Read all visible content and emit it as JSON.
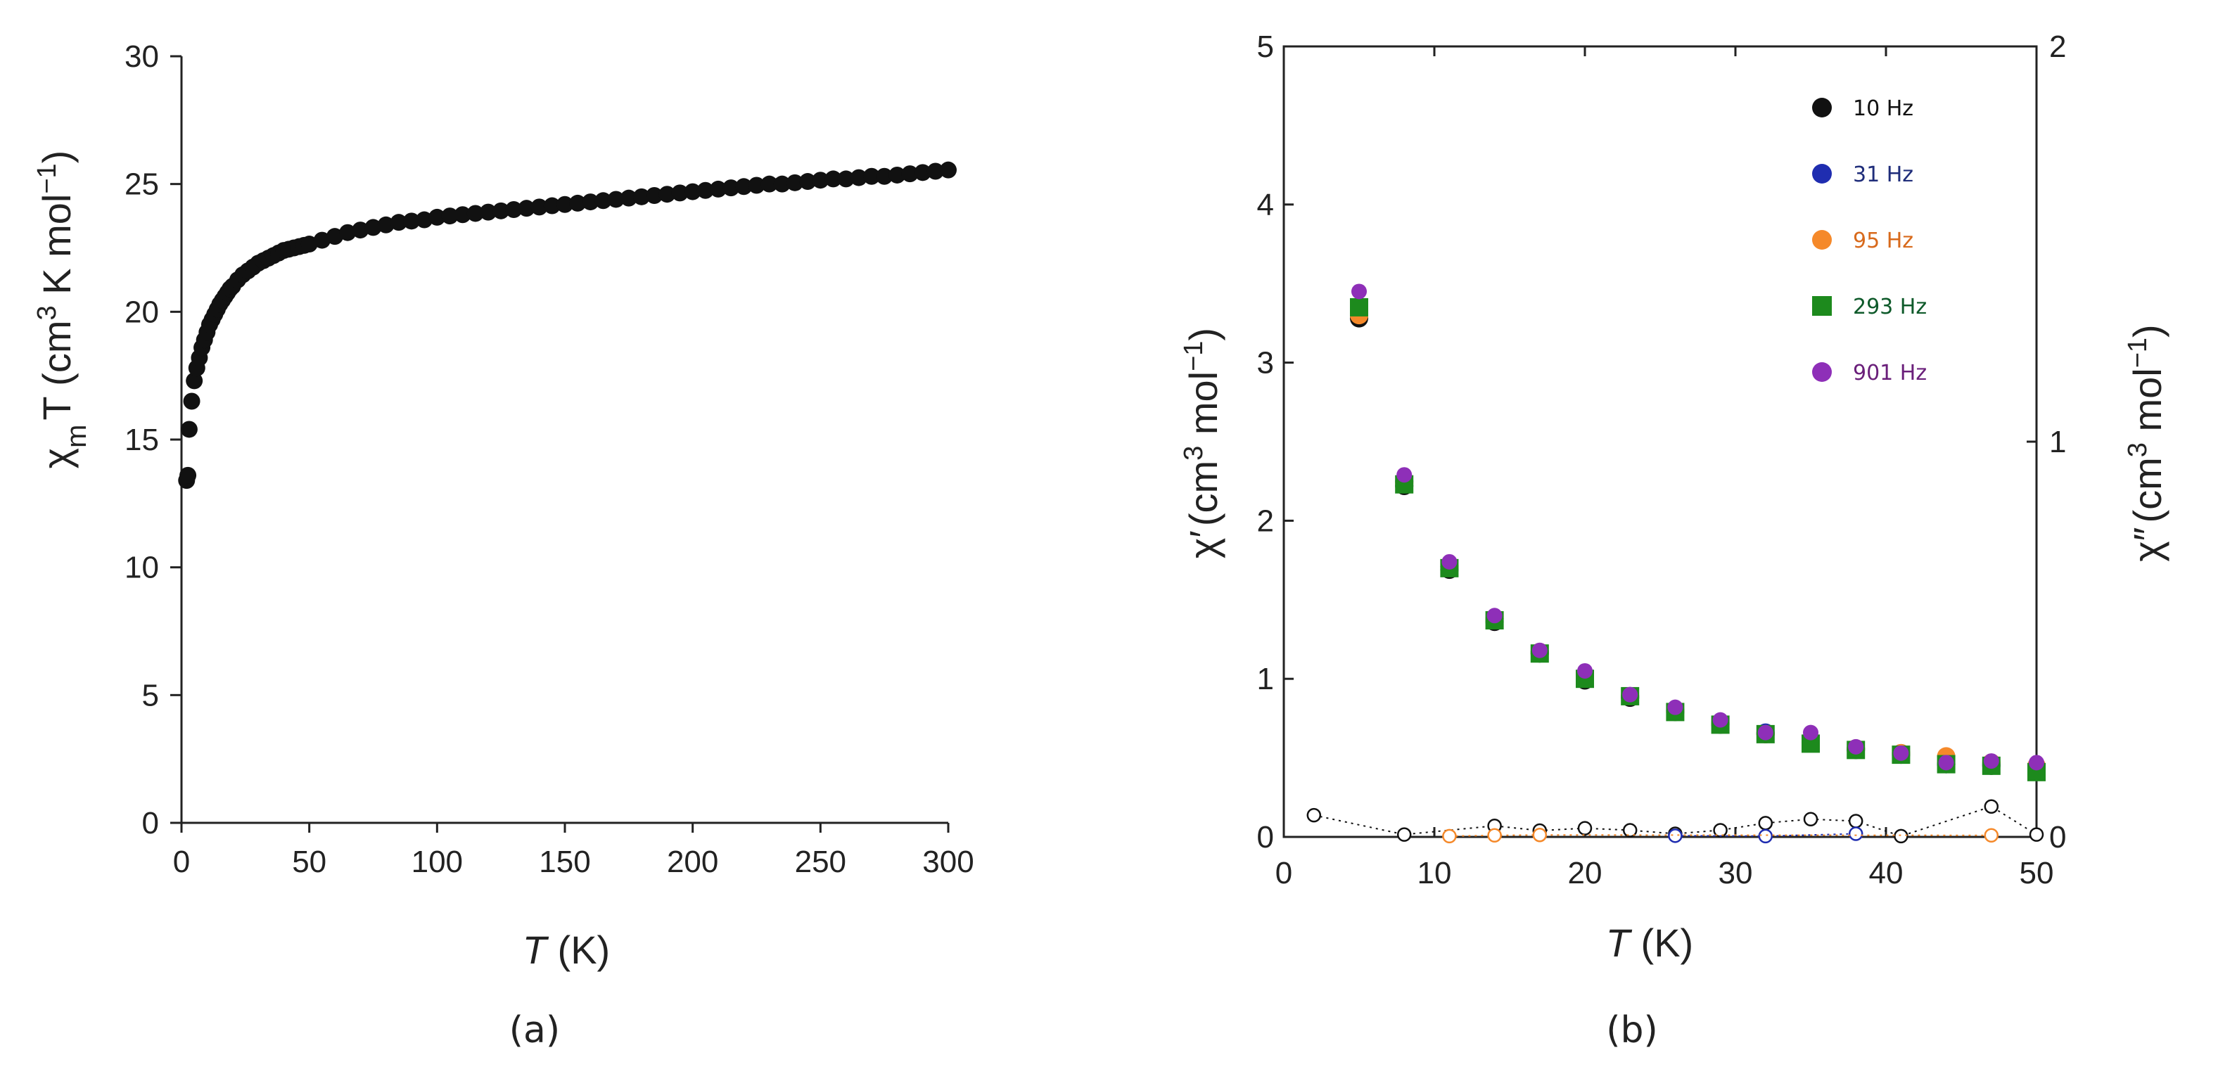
{
  "chart_data": [
    {
      "id": "a",
      "type": "scatter",
      "panel_label": "(a)",
      "xlabel_italic": "T",
      "xlabel_rest": " (K)",
      "ylabel_main": "χ",
      "ylabel_sub": "m",
      "ylabel_rest": "T (cm",
      "ylabel_sup1": "3",
      "ylabel_rest2": " K mol",
      "ylabel_sup2": "−1",
      "ylabel_close": ")",
      "xlim": [
        0,
        300
      ],
      "ylim": [
        0,
        30
      ],
      "xticks": [
        0,
        50,
        100,
        150,
        200,
        250,
        300
      ],
      "yticks": [
        0,
        5,
        10,
        15,
        20,
        25,
        30
      ],
      "marker_color": "#111111",
      "series": [
        {
          "name": "χmT",
          "x": [
            2,
            2.5,
            3,
            4,
            5,
            6,
            7,
            8,
            9,
            10,
            11,
            12,
            13,
            14,
            15,
            16,
            17,
            18,
            19,
            20,
            22,
            24,
            26,
            28,
            30,
            32,
            34,
            36,
            38,
            40,
            42,
            44,
            46,
            48,
            50,
            55,
            60,
            65,
            70,
            75,
            80,
            85,
            90,
            95,
            100,
            105,
            110,
            115,
            120,
            125,
            130,
            135,
            140,
            145,
            150,
            155,
            160,
            165,
            170,
            175,
            180,
            185,
            190,
            195,
            200,
            205,
            210,
            215,
            220,
            225,
            230,
            235,
            240,
            245,
            250,
            255,
            260,
            265,
            270,
            275,
            280,
            285,
            290,
            295,
            300
          ],
          "y": [
            13.4,
            13.6,
            15.4,
            16.5,
            17.3,
            17.8,
            18.2,
            18.6,
            18.9,
            19.2,
            19.5,
            19.7,
            19.9,
            20.1,
            20.3,
            20.45,
            20.6,
            20.75,
            20.9,
            21.0,
            21.25,
            21.45,
            21.6,
            21.75,
            21.9,
            22.0,
            22.1,
            22.2,
            22.3,
            22.4,
            22.45,
            22.5,
            22.55,
            22.6,
            22.65,
            22.8,
            22.95,
            23.1,
            23.2,
            23.3,
            23.4,
            23.5,
            23.55,
            23.6,
            23.7,
            23.75,
            23.8,
            23.85,
            23.9,
            23.95,
            24.0,
            24.05,
            24.1,
            24.15,
            24.2,
            24.25,
            24.3,
            24.35,
            24.4,
            24.45,
            24.5,
            24.55,
            24.6,
            24.65,
            24.7,
            24.75,
            24.8,
            24.85,
            24.9,
            24.95,
            25.0,
            25.0,
            25.05,
            25.1,
            25.15,
            25.2,
            25.2,
            25.25,
            25.3,
            25.3,
            25.35,
            25.4,
            25.45,
            25.5,
            25.55
          ]
        }
      ]
    },
    {
      "id": "b",
      "type": "scatter",
      "panel_label": "(b)",
      "xlabel_italic": "T",
      "xlabel_rest": " (K)",
      "ylabel_left_main": "χ′",
      "ylabel_left_rest": "(cm",
      "ylabel_left_sup1": "3",
      "ylabel_left_rest2": " mol",
      "ylabel_left_sup2": "−1",
      "ylabel_left_close": ")",
      "ylabel_right_main": "χ″",
      "ylabel_right_rest": "(cm",
      "ylabel_right_sup1": "3",
      "ylabel_right_rest2": " mol",
      "ylabel_right_sup2": "−1",
      "ylabel_right_close": ")",
      "xlim": [
        0,
        50
      ],
      "ylim_left": [
        0,
        5
      ],
      "ylim_right": [
        0,
        2
      ],
      "xticks": [
        0,
        10,
        20,
        30,
        40,
        50
      ],
      "yticks_left": [
        0,
        1,
        2,
        3,
        4,
        5
      ],
      "yticks_right": [
        0,
        1,
        2
      ],
      "x": [
        5,
        8,
        11,
        14,
        17,
        20,
        23,
        26,
        29,
        32,
        35,
        38,
        41,
        44,
        47,
        50
      ],
      "legend": [
        {
          "label": "10 Hz",
          "color": "#111111",
          "text_color": "#111111",
          "marker": "circle"
        },
        {
          "label": "31 Hz",
          "color": "#1f2db0",
          "text_color": "#1f2d7a",
          "marker": "circle"
        },
        {
          "label": "95 Hz",
          "color": "#f5892a",
          "text_color": "#d86a1c",
          "marker": "circle"
        },
        {
          "label": "293 Hz",
          "color": "#1d8a1d",
          "text_color": "#0e5a2a",
          "marker": "square"
        },
        {
          "label": "901 Hz",
          "color": "#8e2fb8",
          "text_color": "#6a1f7a",
          "marker": "circle"
        }
      ],
      "series_in_phase": [
        {
          "name": "10 Hz",
          "values": [
            3.28,
            2.22,
            1.69,
            1.36,
            1.16,
            0.99,
            0.88,
            0.79,
            0.71,
            0.65,
            0.6,
            0.55,
            0.52,
            0.46,
            0.45,
            0.43
          ]
        },
        {
          "name": "31 Hz",
          "values": [
            3.31,
            2.25,
            1.71,
            1.38,
            1.17,
            1.01,
            0.89,
            0.8,
            0.72,
            0.66,
            0.6,
            0.56,
            0.53,
            0.46,
            0.46,
            0.44
          ]
        },
        {
          "name": "95 Hz",
          "values": [
            3.3,
            2.24,
            1.71,
            1.38,
            1.17,
            1.01,
            0.89,
            0.8,
            0.72,
            0.65,
            0.6,
            0.56,
            0.53,
            0.51,
            0.47,
            0.45
          ]
        },
        {
          "name": "293 Hz",
          "values": [
            3.35,
            2.23,
            1.7,
            1.37,
            1.16,
            1.0,
            0.89,
            0.79,
            0.71,
            0.65,
            0.59,
            0.55,
            0.52,
            0.46,
            0.45,
            0.41
          ]
        },
        {
          "name": "901 Hz",
          "values": [
            3.45,
            2.29,
            1.74,
            1.4,
            1.18,
            1.05,
            0.9,
            0.82,
            0.74,
            0.66,
            0.66,
            0.57,
            0.53,
            0.47,
            0.48,
            0.47
          ]
        }
      ],
      "series_out_of_phase": [
        {
          "name": "10 Hz",
          "x": [
            2,
            8,
            14,
            17,
            20,
            23,
            26,
            29,
            32,
            35,
            38,
            41,
            47,
            50
          ],
          "values": [
            0.055,
            0.006,
            0.028,
            0.016,
            0.022,
            0.017,
            0.008,
            0.017,
            0.035,
            0.045,
            0.04,
            0.002,
            0.077,
            0.006
          ]
        },
        {
          "name": "31 Hz",
          "x": [
            26,
            32,
            38
          ],
          "values": [
            0.003,
            0.002,
            0.008
          ]
        },
        {
          "name": "95 Hz",
          "x": [
            11,
            14,
            17,
            47
          ],
          "values": [
            0.002,
            0.004,
            0.005,
            0.004
          ]
        }
      ]
    }
  ]
}
